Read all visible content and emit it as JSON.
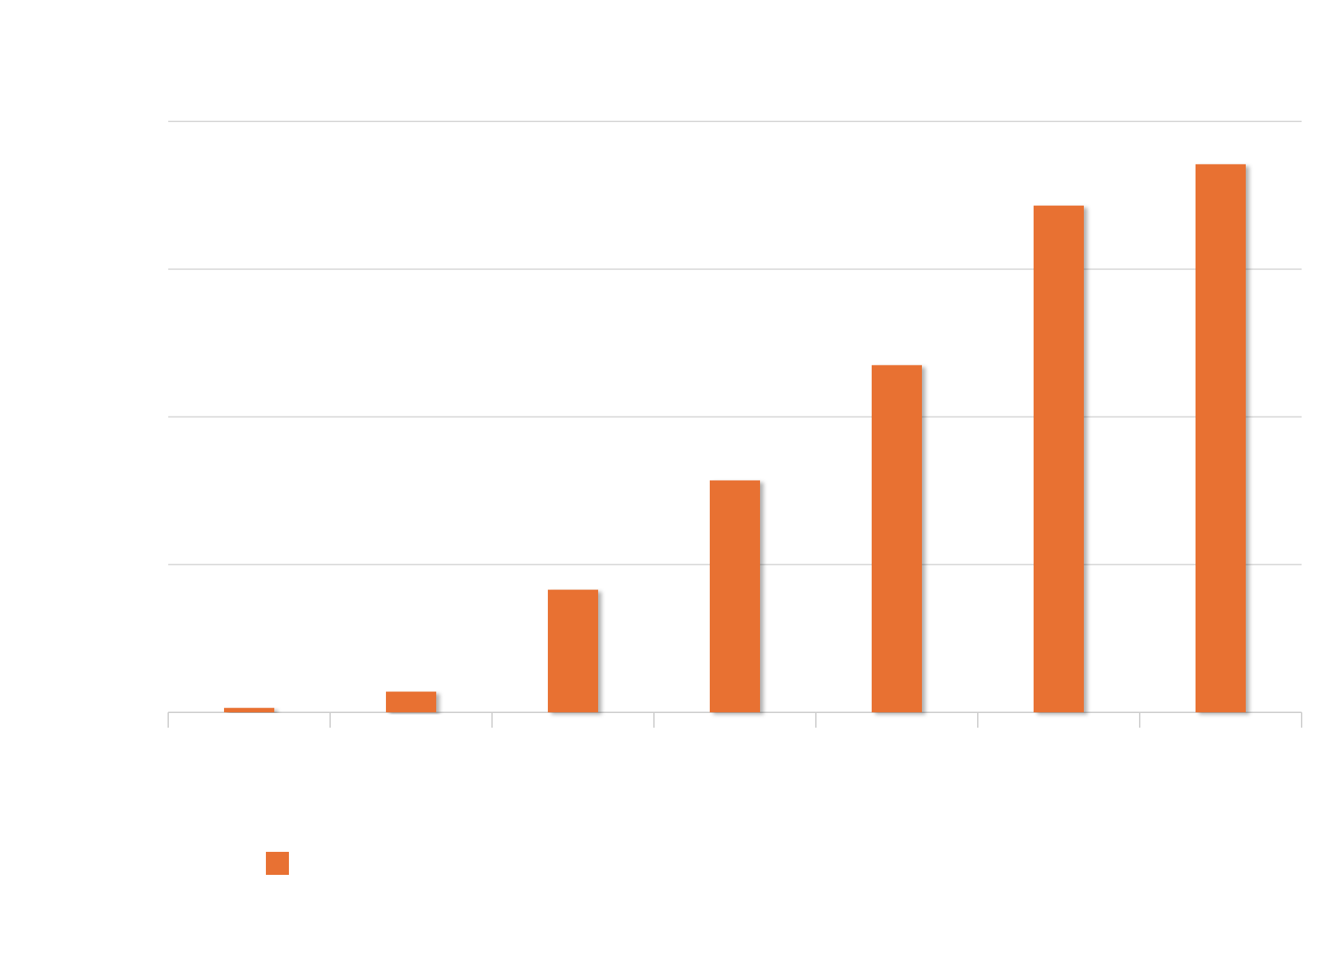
{
  "chart_data": {
    "type": "bar",
    "categories": [
      null,
      null,
      null,
      null,
      null,
      null,
      null
    ],
    "values": [
      0.03,
      0.14,
      0.83,
      1.57,
      2.35,
      3.43,
      3.71
    ],
    "color": "#e87133",
    "ylim": [
      0,
      4
    ],
    "yticks": [
      0,
      1,
      2,
      3,
      4
    ],
    "grid": true,
    "legend": "bottom-left"
  }
}
